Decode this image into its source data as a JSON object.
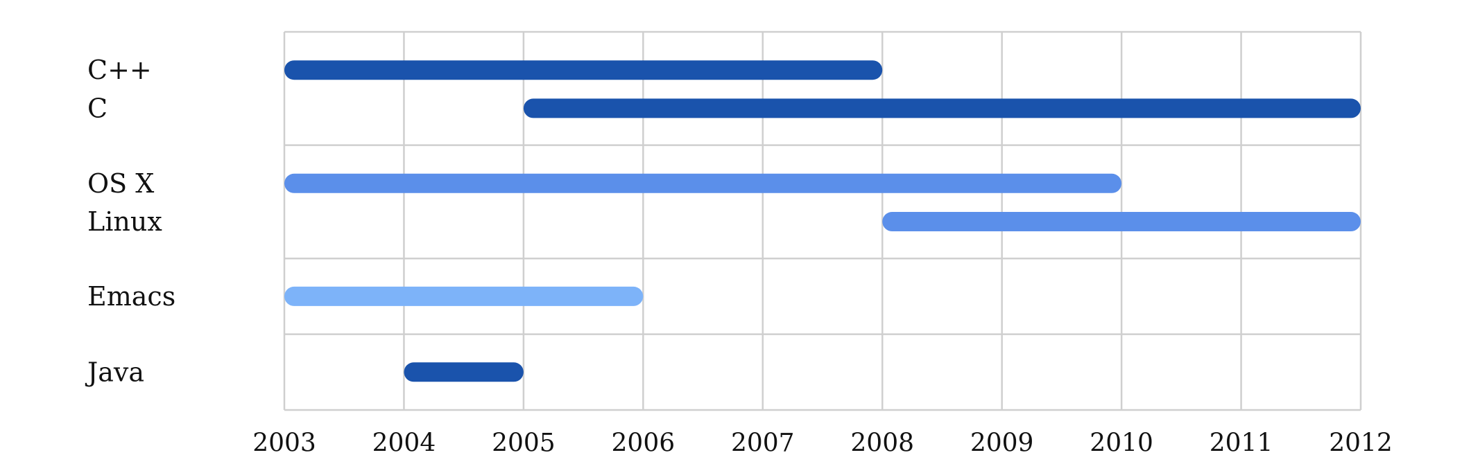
{
  "chart_data": {
    "type": "timeline",
    "x": [
      2003,
      2004,
      2005,
      2006,
      2007,
      2008,
      2009,
      2010,
      2011,
      2012
    ],
    "xlim": [
      2003,
      2012
    ],
    "tick_labels": [
      "2003",
      "2004",
      "2005",
      "2006",
      "2007",
      "2008",
      "2009",
      "2010",
      "2011",
      "2012"
    ],
    "grid": true,
    "groups": [
      {
        "items": [
          {
            "label": "C++",
            "start": 2003,
            "end": 2008,
            "color": "#1a53ac"
          },
          {
            "label": "C",
            "start": 2005,
            "end": 2012,
            "color": "#1a53ac"
          }
        ]
      },
      {
        "items": [
          {
            "label": "OS X",
            "start": 2003,
            "end": 2010,
            "color": "#5b8fea"
          },
          {
            "label": "Linux",
            "start": 2008,
            "end": 2012,
            "color": "#5b8fea"
          }
        ]
      },
      {
        "items": [
          {
            "label": "Emacs",
            "start": 2003,
            "end": 2006,
            "color": "#7db3f9"
          }
        ]
      },
      {
        "items": [
          {
            "label": "Java",
            "start": 2004,
            "end": 2005,
            "color": "#1a53ac"
          }
        ]
      }
    ]
  }
}
